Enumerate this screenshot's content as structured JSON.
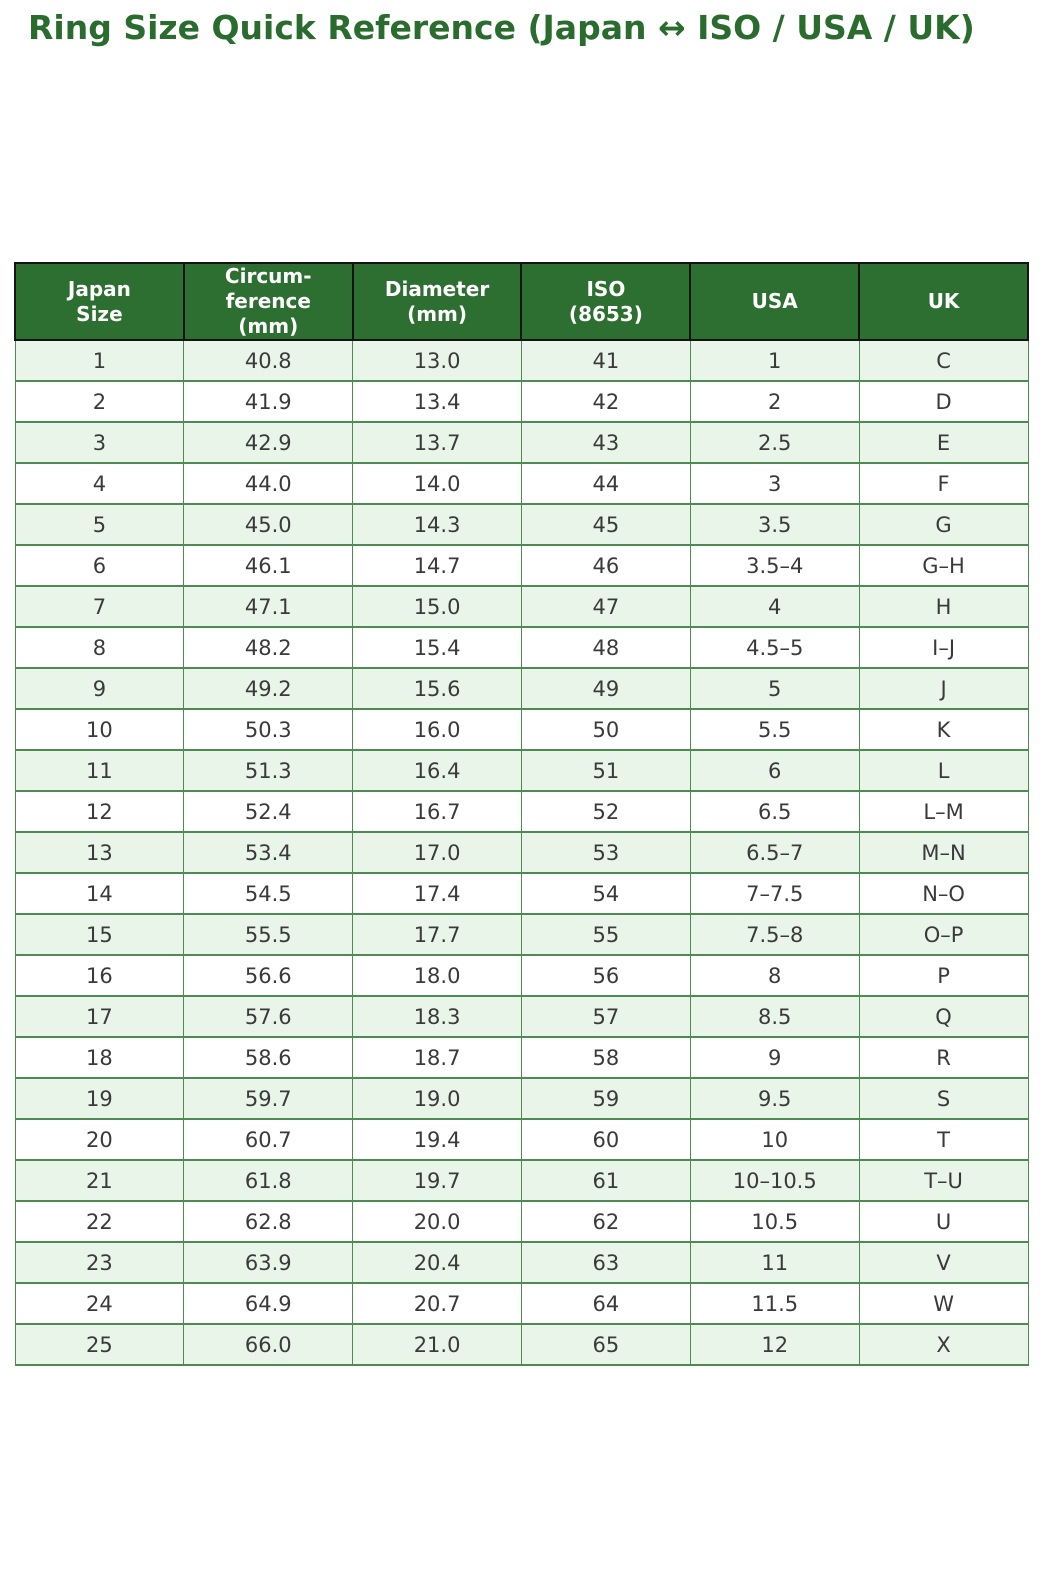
{
  "title": "Ring Size Quick Reference (Japan ↔ ISO / USA / UK)",
  "colors": {
    "title": "#2a6b2e",
    "header_bg": "#2d6e31",
    "header_text": "#ffffff",
    "header_border": "#141414",
    "row_alt_bg": "#e9f5e9",
    "row_bg": "#ffffff",
    "row_border": "#4e8b52",
    "cell_text": "#3a3a3a"
  },
  "chart_data": {
    "type": "table",
    "title": "Ring Size Quick Reference (Japan ↔ ISO / USA / UK)",
    "columns": [
      "Japan Size",
      "Circumference (mm)",
      "Diameter (mm)",
      "ISO (8653)",
      "USA",
      "UK"
    ],
    "column_display": [
      "Japan\nSize",
      "Circum-\nference\n(mm)",
      "Diameter\n(mm)",
      "ISO\n(8653)",
      "USA",
      "UK"
    ],
    "rows": [
      [
        "1",
        "40.8",
        "13.0",
        "41",
        "1",
        "C"
      ],
      [
        "2",
        "41.9",
        "13.4",
        "42",
        "2",
        "D"
      ],
      [
        "3",
        "42.9",
        "13.7",
        "43",
        "2.5",
        "E"
      ],
      [
        "4",
        "44.0",
        "14.0",
        "44",
        "3",
        "F"
      ],
      [
        "5",
        "45.0",
        "14.3",
        "45",
        "3.5",
        "G"
      ],
      [
        "6",
        "46.1",
        "14.7",
        "46",
        "3.5–4",
        "G–H"
      ],
      [
        "7",
        "47.1",
        "15.0",
        "47",
        "4",
        "H"
      ],
      [
        "8",
        "48.2",
        "15.4",
        "48",
        "4.5–5",
        "I–J"
      ],
      [
        "9",
        "49.2",
        "15.6",
        "49",
        "5",
        "J"
      ],
      [
        "10",
        "50.3",
        "16.0",
        "50",
        "5.5",
        "K"
      ],
      [
        "11",
        "51.3",
        "16.4",
        "51",
        "6",
        "L"
      ],
      [
        "12",
        "52.4",
        "16.7",
        "52",
        "6.5",
        "L–M"
      ],
      [
        "13",
        "53.4",
        "17.0",
        "53",
        "6.5–7",
        "M–N"
      ],
      [
        "14",
        "54.5",
        "17.4",
        "54",
        "7–7.5",
        "N–O"
      ],
      [
        "15",
        "55.5",
        "17.7",
        "55",
        "7.5–8",
        "O–P"
      ],
      [
        "16",
        "56.6",
        "18.0",
        "56",
        "8",
        "P"
      ],
      [
        "17",
        "57.6",
        "18.3",
        "57",
        "8.5",
        "Q"
      ],
      [
        "18",
        "58.6",
        "18.7",
        "58",
        "9",
        "R"
      ],
      [
        "19",
        "59.7",
        "19.0",
        "59",
        "9.5",
        "S"
      ],
      [
        "20",
        "60.7",
        "19.4",
        "60",
        "10",
        "T"
      ],
      [
        "21",
        "61.8",
        "19.7",
        "61",
        "10–10.5",
        "T–U"
      ],
      [
        "22",
        "62.8",
        "20.0",
        "62",
        "10.5",
        "U"
      ],
      [
        "23",
        "63.9",
        "20.4",
        "63",
        "11",
        "V"
      ],
      [
        "24",
        "64.9",
        "20.7",
        "64",
        "11.5",
        "W"
      ],
      [
        "25",
        "66.0",
        "21.0",
        "65",
        "12",
        "X"
      ]
    ]
  }
}
